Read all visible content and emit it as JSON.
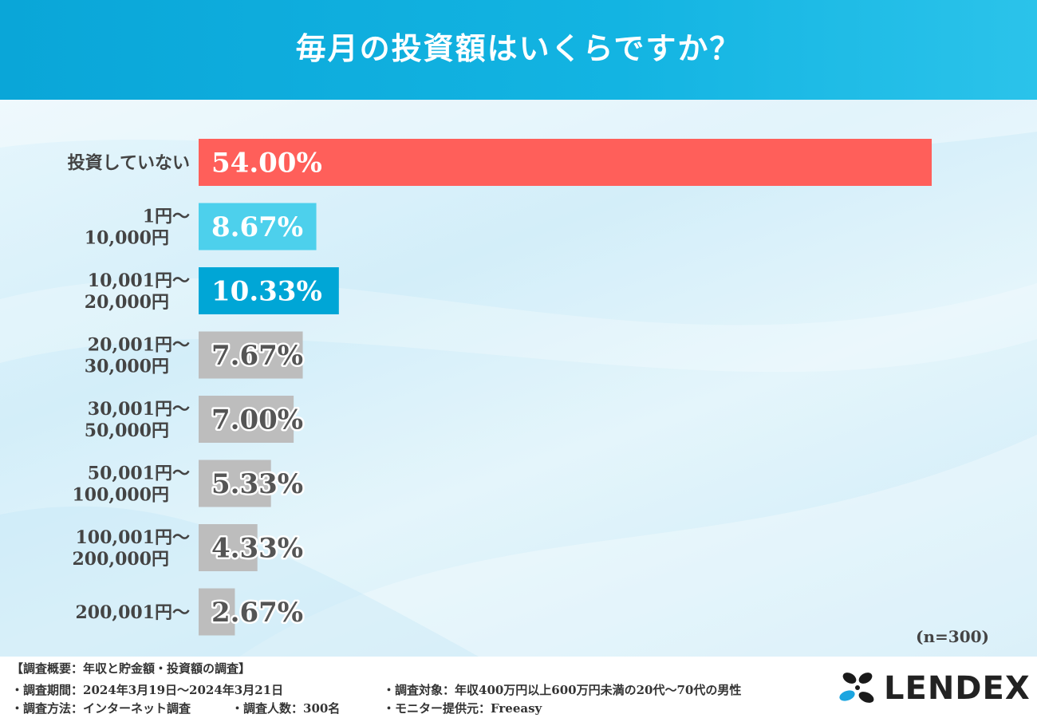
{
  "header": {
    "title": "毎月の投資額はいくらですか？"
  },
  "chart_data": {
    "type": "bar",
    "orientation": "horizontal",
    "categories": [
      [
        "投資していない"
      ],
      [
        "1円～",
        "10,000円"
      ],
      [
        "10,001円～",
        "20,000円"
      ],
      [
        "20,001円～",
        "30,000円"
      ],
      [
        "30,001円～",
        "50,000円"
      ],
      [
        "50,001円～",
        "100,000円"
      ],
      [
        "100,001円～",
        "200,000円"
      ],
      [
        "200,001円～"
      ]
    ],
    "values": [
      54.0,
      8.67,
      10.33,
      7.67,
      7.0,
      5.33,
      4.33,
      2.67
    ],
    "value_labels": [
      "54.00%",
      "8.67%",
      "10.33%",
      "7.67%",
      "7.00%",
      "5.33%",
      "4.33%",
      "2.67%"
    ],
    "colors": [
      "#ff5f5a",
      "#4dd0ec",
      "#00a6d6",
      "#bdbdbd",
      "#bdbdbd",
      "#bdbdbd",
      "#bdbdbd",
      "#bdbdbd"
    ],
    "label_colors": [
      "#ffffff",
      "#ffffff",
      "#ffffff",
      "#555555",
      "#555555",
      "#555555",
      "#555555",
      "#555555"
    ],
    "label_stroke_colors": [
      "#ff5f5a",
      "#4dd0ec",
      "#00a6d6",
      "#ffffff",
      "#ffffff",
      "#ffffff",
      "#ffffff",
      "#ffffff"
    ],
    "xlim": [
      0,
      54
    ],
    "grid": false,
    "legend": "none",
    "sample_note": "(n=300)"
  },
  "footer": {
    "summary_title": "【調査概要：年収と貯金額・投資額の調査】",
    "period": "・調査期間：2024年3月19日～2024年3月21日",
    "method": "・調査方法：インターネット調査",
    "count": "・調査人数：300名",
    "target": "・調査対象：年収400万円以上600万円未満の20代～70代の男性",
    "provider": "・モニター提供元：Freeasy"
  },
  "logo": {
    "text": "LENDEX",
    "colors": [
      "#1a1a1a",
      "#1ba5e0"
    ]
  }
}
